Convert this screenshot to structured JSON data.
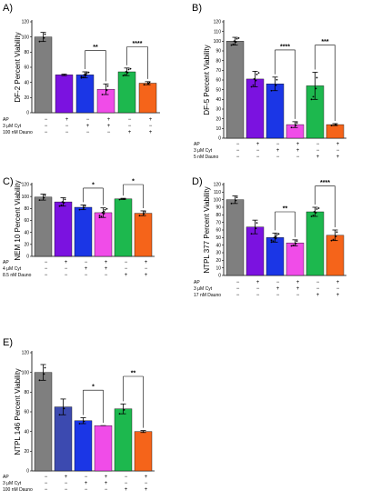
{
  "colors": {
    "AP": "#7f7f7f",
    "Cyt": "#7b12e0",
    "AP_Cyt": "#1b36e6",
    "AP_Cyt_E": "#3c4ab0",
    "AP_Cyt_combo": "#f04ce8",
    "Dauno": "#1db84e",
    "AP_Dauno": "#f5641a"
  },
  "chart_data": [
    {
      "panel": "A)",
      "type": "bar",
      "ylabel": "DF-2 Percent Viability",
      "ylim": [
        0,
        120
      ],
      "yticks": [
        0,
        20,
        40,
        60,
        80,
        100,
        120
      ],
      "values": [
        100,
        50,
        50,
        31,
        54,
        39
      ],
      "errors": [
        6,
        1,
        4,
        7,
        5,
        2
      ],
      "point_counts": [
        3,
        0,
        8,
        3,
        6,
        3
      ],
      "row_labels": [
        "AP",
        "3  μM Cyt",
        "100 nM Dauno"
      ],
      "rows": [
        [
          "−",
          "+",
          "−",
          "+",
          "−",
          "+"
        ],
        [
          "−",
          "−",
          "+",
          "+",
          "−",
          "−"
        ],
        [
          "−",
          "−",
          "−",
          "−",
          "+",
          "+"
        ]
      ],
      "significance": [
        {
          "from": 2,
          "to": 3,
          "label": "**"
        },
        {
          "from": 4,
          "to": 5,
          "label": "****"
        }
      ]
    },
    {
      "panel": "B)",
      "type": "bar",
      "ylabel": "DF-5 Percent Viability",
      "ylim": [
        0,
        120
      ],
      "yticks": [
        0,
        10,
        20,
        30,
        40,
        50,
        60,
        70,
        80,
        90,
        100,
        110,
        120
      ],
      "values": [
        100,
        61,
        56,
        14,
        54,
        14
      ],
      "errors": [
        4,
        8,
        7,
        3,
        14,
        1
      ],
      "point_counts": [
        6,
        6,
        3,
        3,
        4,
        2
      ],
      "row_labels": [
        "AP",
        "3  μM Cyt",
        "5 nM Dauno"
      ],
      "rows": [
        [
          "−",
          "+",
          "−",
          "+",
          "−",
          "+"
        ],
        [
          "−",
          "−",
          "+",
          "+",
          "−",
          "−"
        ],
        [
          "−",
          "−",
          "−",
          "−",
          "+",
          "+"
        ]
      ],
      "significance": [
        {
          "from": 2,
          "to": 3,
          "label": "****"
        },
        {
          "from": 4,
          "to": 5,
          "label": "***"
        }
      ]
    },
    {
      "panel": "C)",
      "type": "bar",
      "ylabel": "NEM 10 Percent Viability",
      "ylim": [
        0,
        120
      ],
      "yticks": [
        0,
        20,
        40,
        60,
        80,
        100,
        120
      ],
      "values": [
        99,
        91,
        82,
        73,
        96,
        72
      ],
      "errors": [
        5,
        7,
        4,
        8,
        1,
        4
      ],
      "point_counts": [
        3,
        5,
        3,
        8,
        2,
        3
      ],
      "row_labels": [
        "AP",
        "4  μM Cyt",
        "8.5 nM Dauno"
      ],
      "rows": [
        [
          "−",
          "+",
          "−",
          "+",
          "−",
          "+"
        ],
        [
          "−",
          "−",
          "+",
          "+",
          "−",
          "−"
        ],
        [
          "−",
          "−",
          "−",
          "−",
          "+",
          "+"
        ]
      ],
      "significance": [
        {
          "from": 2,
          "to": 3,
          "label": "*"
        },
        {
          "from": 4,
          "to": 5,
          "label": "*"
        }
      ]
    },
    {
      "panel": "D)",
      "type": "bar",
      "ylabel": "NTPL 377 Percent Viability",
      "ylim": [
        0,
        120
      ],
      "yticks": [
        0,
        10,
        20,
        30,
        40,
        50,
        60,
        70,
        80,
        90,
        100,
        110,
        120
      ],
      "values": [
        100,
        64,
        50,
        43,
        84,
        53
      ],
      "errors": [
        5,
        9,
        6,
        4,
        6,
        7
      ],
      "point_counts": [
        3,
        3,
        8,
        4,
        6,
        4
      ],
      "row_labels": [
        "AP",
        "3  μM Cyt",
        "17 nM Dauno"
      ],
      "rows": [
        [
          "−",
          "+",
          "−",
          "+",
          "−",
          "+"
        ],
        [
          "−",
          "−",
          "+",
          "+",
          "−",
          "−"
        ],
        [
          "−",
          "−",
          "−",
          "−",
          "+",
          "+"
        ]
      ],
      "significance": [
        {
          "from": 2,
          "to": 3,
          "label": "**"
        },
        {
          "from": 4,
          "to": 5,
          "label": "****"
        }
      ]
    },
    {
      "panel": "E)",
      "type": "bar",
      "ylabel": "NTPL 146 Percent Viability",
      "ylim": [
        0,
        120
      ],
      "yticks": [
        0,
        20,
        40,
        60,
        80,
        100,
        120
      ],
      "values": [
        100,
        65,
        51,
        46,
        63,
        40
      ],
      "errors": [
        8,
        8,
        3,
        0,
        5,
        1
      ],
      "point_counts": [
        3,
        2,
        2,
        0,
        2,
        0
      ],
      "row_labels": [
        "AP",
        "3 μM Cyt",
        "100 nM Dauno"
      ],
      "rows": [
        [
          "−",
          "+",
          "−",
          "+",
          "−",
          "+"
        ],
        [
          "−",
          "−",
          "+",
          "+",
          "−",
          "−"
        ],
        [
          "−",
          "−",
          "−",
          "−",
          "+",
          "+"
        ]
      ],
      "significance": [
        {
          "from": 2,
          "to": 3,
          "label": "*"
        },
        {
          "from": 4,
          "to": 5,
          "label": "**"
        }
      ]
    }
  ]
}
